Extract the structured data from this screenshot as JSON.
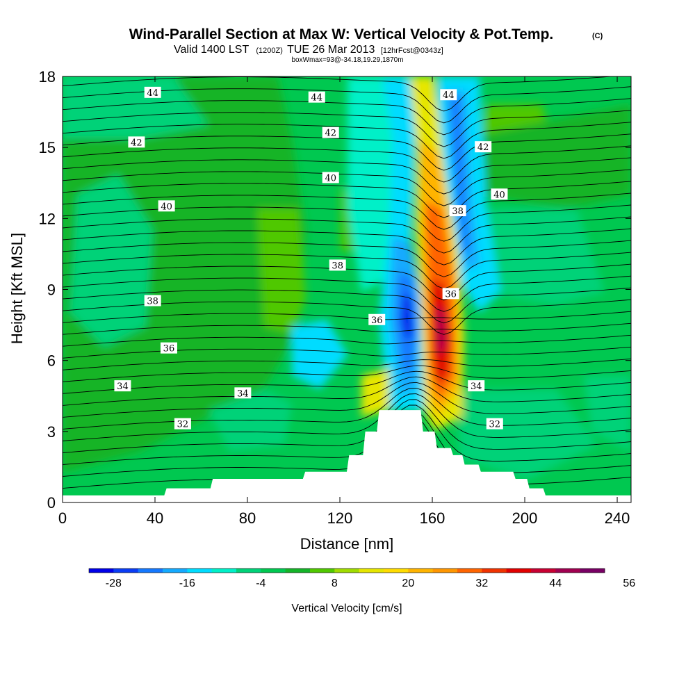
{
  "title": {
    "main": "Wind-Parallel Section at Max W: Vertical Velocity & Pot.Temp.",
    "copyright": "(C)",
    "valid_prefix": "Valid 1400 LST",
    "valid_z": "(1200Z)",
    "valid_date": "TUE 26 Mar 2013",
    "forecast": "[12hrFcst@0343z]",
    "boxwmax": "boxWmax=93@-34.18,19.29,1870m"
  },
  "chart_data": {
    "type": "heatmap",
    "xlabel": "Distance [nm]",
    "ylabel": "Height [Kft MSL]",
    "xlim": [
      0,
      246
    ],
    "ylim": [
      0,
      18
    ],
    "x_ticks": [
      "0",
      "40",
      "80",
      "120",
      "160",
      "200",
      "240"
    ],
    "y_ticks": [
      "0",
      "3",
      "6",
      "9",
      "12",
      "15",
      "18"
    ],
    "x_tick_values": [
      0,
      40,
      80,
      120,
      160,
      200,
      240
    ],
    "y_tick_values": [
      0,
      3,
      6,
      9,
      12,
      15,
      18
    ],
    "colorbar": {
      "label": "Vertical Velocity [cm/s]",
      "min": -32,
      "step": 4,
      "tick_labels": [
        "-28",
        "-16",
        "-4",
        "8",
        "20",
        "32",
        "44",
        "56"
      ],
      "tick_values": [
        -28,
        -16,
        -4,
        8,
        20,
        32,
        44,
        56
      ],
      "colors": [
        "#0000e8",
        "#0a3cf5",
        "#1478ff",
        "#14aaff",
        "#00dcff",
        "#00f0c8",
        "#00d278",
        "#00c850",
        "#14b428",
        "#50c800",
        "#a0dc00",
        "#e6e600",
        "#ffdc00",
        "#ffb400",
        "#ff9600",
        "#ff6400",
        "#f03200",
        "#e10000",
        "#c80032",
        "#a00050",
        "#780064"
      ]
    },
    "terrain": [
      [
        0,
        0.3
      ],
      [
        44,
        0.3
      ],
      [
        45,
        0.6
      ],
      [
        64,
        0.6
      ],
      [
        65,
        1.0
      ],
      [
        104,
        1.0
      ],
      [
        105,
        1.3
      ],
      [
        123,
        1.3
      ],
      [
        124,
        2.0
      ],
      [
        130,
        2.0
      ],
      [
        131,
        3.0
      ],
      [
        136,
        3.0
      ],
      [
        137,
        3.9
      ],
      [
        155,
        3.9
      ],
      [
        156,
        3.0
      ],
      [
        161,
        3.0
      ],
      [
        162,
        2.3
      ],
      [
        168,
        2.3
      ],
      [
        169,
        2.0
      ],
      [
        173,
        2.0
      ],
      [
        174,
        1.6
      ],
      [
        180,
        1.6
      ],
      [
        181,
        1.3
      ],
      [
        195,
        1.3
      ],
      [
        196,
        1.0
      ],
      [
        201,
        1.0
      ],
      [
        202,
        0.6
      ],
      [
        208,
        0.6
      ],
      [
        209,
        0.3
      ],
      [
        246,
        0.3
      ]
    ],
    "isentropes_kelvin_offset": {
      "labels": [
        {
          "text": "44",
          "x": 39,
          "y": 17.3
        },
        {
          "text": "44",
          "x": 110,
          "y": 17.1
        },
        {
          "text": "44",
          "x": 167,
          "y": 17.2
        },
        {
          "text": "42",
          "x": 32,
          "y": 15.2
        },
        {
          "text": "42",
          "x": 116,
          "y": 15.6
        },
        {
          "text": "42",
          "x": 182,
          "y": 15.0
        },
        {
          "text": "40",
          "x": 45,
          "y": 12.5
        },
        {
          "text": "40",
          "x": 116,
          "y": 13.7
        },
        {
          "text": "40",
          "x": 189,
          "y": 13.0
        },
        {
          "text": "38",
          "x": 39,
          "y": 8.5
        },
        {
          "text": "38",
          "x": 119,
          "y": 10.0
        },
        {
          "text": "38",
          "x": 171,
          "y": 12.3
        },
        {
          "text": "36",
          "x": 46,
          "y": 6.5
        },
        {
          "text": "36",
          "x": 136,
          "y": 7.7
        },
        {
          "text": "36",
          "x": 168,
          "y": 8.8
        },
        {
          "text": "34",
          "x": 26,
          "y": 4.9
        },
        {
          "text": "34",
          "x": 78,
          "y": 4.6
        },
        {
          "text": "34",
          "x": 179,
          "y": 4.9
        },
        {
          "text": "32",
          "x": 52,
          "y": 3.3
        },
        {
          "text": "32",
          "x": 187,
          "y": 3.3
        }
      ]
    }
  }
}
